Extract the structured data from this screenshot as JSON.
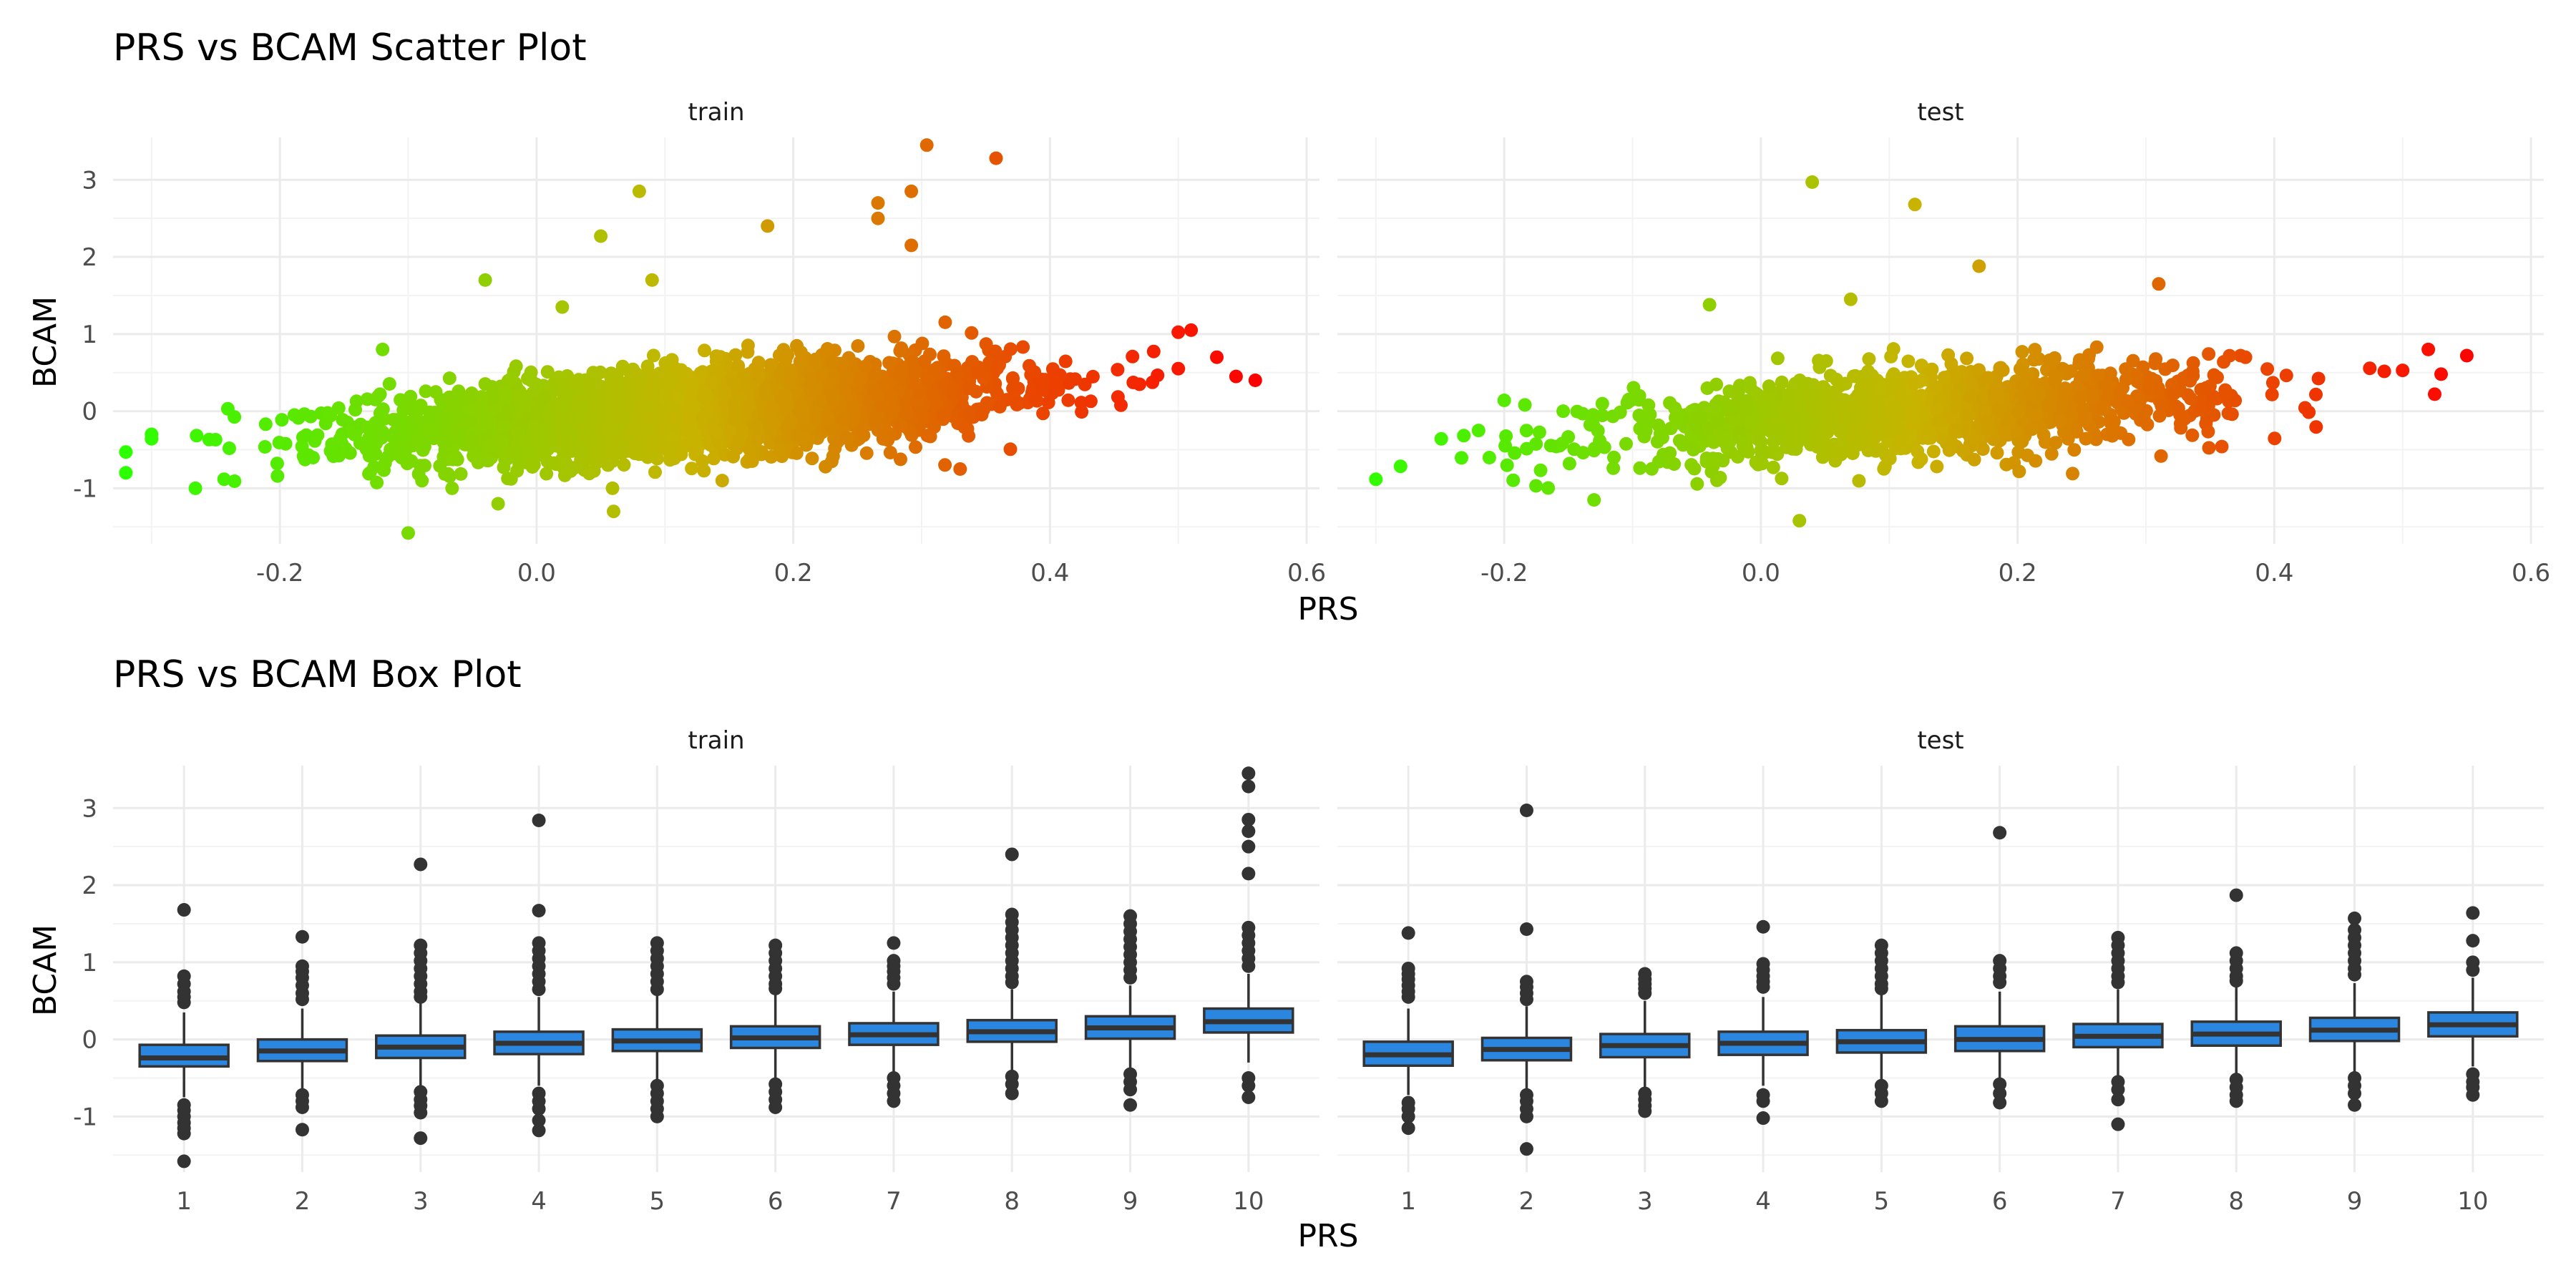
{
  "chart_data": [
    {
      "type": "scatter",
      "title": "PRS vs BCAM Scatter Plot",
      "xlabel": "PRS",
      "ylabel": "BCAM",
      "facets": [
        "train",
        "test"
      ],
      "xlim": [
        -0.33,
        0.61
      ],
      "ylim": [
        -1.72,
        3.55
      ],
      "x_ticks": [
        "-0.2",
        "0.0",
        "0.2",
        "0.4",
        "0.6"
      ],
      "x_tick_values": [
        -0.2,
        0.0,
        0.2,
        0.4,
        0.6
      ],
      "y_ticks": [
        "-1",
        "0",
        "1",
        "2",
        "3"
      ],
      "y_tick_values": [
        -1,
        0,
        1,
        2,
        3
      ],
      "color_scale": {
        "low": "#2bff00",
        "mid": "#c8b400",
        "high": "#ff0000",
        "domain": [
          -0.32,
          0.56
        ]
      },
      "grid": true,
      "notable_points": {
        "train": [
          [
            -0.32,
            -0.53
          ],
          [
            -0.32,
            -0.8
          ],
          [
            -0.3,
            -0.3
          ],
          [
            -0.1,
            -1.58
          ],
          [
            -0.12,
            0.8
          ],
          [
            -0.04,
            1.7
          ],
          [
            0.02,
            1.35
          ],
          [
            0.05,
            2.27
          ],
          [
            0.08,
            2.85
          ],
          [
            0.09,
            1.7
          ],
          [
            0.18,
            2.4
          ],
          [
            0.266,
            2.7
          ],
          [
            0.266,
            2.5
          ],
          [
            0.292,
            2.85
          ],
          [
            0.292,
            2.15
          ],
          [
            0.304,
            3.45
          ],
          [
            0.358,
            3.28
          ],
          [
            0.56,
            0.4
          ],
          [
            0.545,
            0.45
          ],
          [
            0.53,
            0.7
          ],
          [
            0.51,
            1.05
          ],
          [
            0.06,
            -1.3
          ],
          [
            -0.03,
            -1.2
          ],
          [
            0.33,
            -0.75
          ]
        ],
        "test": [
          [
            -0.22,
            -0.25
          ],
          [
            -0.2,
            0.14
          ],
          [
            -0.13,
            -1.15
          ],
          [
            0.03,
            -1.42
          ],
          [
            0.04,
            2.97
          ],
          [
            0.12,
            2.68
          ],
          [
            0.17,
            1.88
          ],
          [
            0.31,
            1.65
          ],
          [
            0.52,
            0.8
          ],
          [
            0.55,
            0.72
          ],
          [
            0.53,
            0.48
          ],
          [
            0.525,
            0.22
          ],
          [
            -0.04,
            1.38
          ],
          [
            0.07,
            1.45
          ]
        ]
      },
      "cloud": {
        "train": {
          "n": 3200,
          "x_mean": 0.12,
          "x_sd": 0.12,
          "slope": 1.15,
          "intercept": -0.14,
          "noise_sd": 0.27
        },
        "test": {
          "n": 1300,
          "x_mean": 0.12,
          "x_sd": 0.12,
          "slope": 1.15,
          "intercept": -0.14,
          "noise_sd": 0.27
        }
      }
    },
    {
      "type": "box",
      "title": "PRS vs BCAM Box Plot",
      "xlabel": "PRS",
      "ylabel": "BCAM",
      "facets": [
        "train",
        "test"
      ],
      "categories": [
        "1",
        "2",
        "3",
        "4",
        "5",
        "6",
        "7",
        "8",
        "9",
        "10"
      ],
      "ylim": [
        -1.72,
        3.55
      ],
      "y_ticks": [
        "-1",
        "0",
        "1",
        "2",
        "3"
      ],
      "y_tick_values": [
        -1,
        0,
        1,
        2,
        3
      ],
      "box_color": "#2b86e0",
      "grid": true,
      "series": [
        {
          "name": "train",
          "boxes": [
            {
              "q1": -0.35,
              "median": -0.24,
              "q3": -0.07,
              "lower": -0.75,
              "upper": 0.35,
              "outliers": [
                1.68,
                0.82,
                0.72,
                0.62,
                0.55,
                0.48,
                -0.85,
                -0.92,
                -1.0,
                -1.08,
                -1.15,
                -1.22,
                -1.58
              ]
            },
            {
              "q1": -0.28,
              "median": -0.15,
              "q3": 0.0,
              "lower": -0.68,
              "upper": 0.4,
              "outliers": [
                1.33,
                0.95,
                0.88,
                0.8,
                0.7,
                0.6,
                0.52,
                -0.72,
                -0.8,
                -0.88,
                -1.17
              ]
            },
            {
              "q1": -0.24,
              "median": -0.1,
              "q3": 0.05,
              "lower": -0.62,
              "upper": 0.48,
              "outliers": [
                2.27,
                1.22,
                1.12,
                1.02,
                0.92,
                0.82,
                0.72,
                0.62,
                0.55,
                -0.68,
                -0.78,
                -0.86,
                -0.95,
                -1.28
              ]
            },
            {
              "q1": -0.19,
              "median": -0.05,
              "q3": 0.1,
              "lower": -0.6,
              "upper": 0.55,
              "outliers": [
                2.84,
                1.67,
                1.25,
                1.15,
                1.05,
                0.95,
                0.85,
                0.75,
                0.65,
                -0.7,
                -0.8,
                -0.9,
                -1.05,
                -1.18
              ]
            },
            {
              "q1": -0.15,
              "median": -0.02,
              "q3": 0.13,
              "lower": -0.55,
              "upper": 0.58,
              "outliers": [
                1.25,
                1.15,
                1.05,
                0.95,
                0.85,
                0.75,
                0.65,
                -0.6,
                -0.7,
                -0.8,
                -0.9,
                -1.0
              ]
            },
            {
              "q1": -0.11,
              "median": 0.02,
              "q3": 0.17,
              "lower": -0.5,
              "upper": 0.6,
              "outliers": [
                1.22,
                1.12,
                1.02,
                0.92,
                0.82,
                0.72,
                0.66,
                -0.58,
                -0.68,
                -0.78,
                -0.88
              ]
            },
            {
              "q1": -0.07,
              "median": 0.06,
              "q3": 0.21,
              "lower": -0.45,
              "upper": 0.62,
              "outliers": [
                1.25,
                1.02,
                0.95,
                0.88,
                0.8,
                0.72,
                -0.5,
                -0.6,
                -0.7,
                -0.8
              ]
            },
            {
              "q1": -0.03,
              "median": 0.1,
              "q3": 0.25,
              "lower": -0.42,
              "upper": 0.65,
              "outliers": [
                2.4,
                1.62,
                1.52,
                1.42,
                1.32,
                1.22,
                1.12,
                1.02,
                0.92,
                0.82,
                0.74,
                -0.48,
                -0.58,
                -0.7
              ]
            },
            {
              "q1": 0.01,
              "median": 0.15,
              "q3": 0.3,
              "lower": -0.4,
              "upper": 0.7,
              "outliers": [
                1.6,
                1.5,
                1.4,
                1.3,
                1.2,
                1.1,
                1.0,
                0.9,
                0.8,
                -0.45,
                -0.55,
                -0.65,
                -0.85
              ]
            },
            {
              "q1": 0.09,
              "median": 0.23,
              "q3": 0.4,
              "lower": -0.3,
              "upper": 0.85,
              "outliers": [
                3.45,
                3.28,
                2.85,
                2.7,
                2.5,
                2.15,
                1.45,
                1.35,
                1.25,
                1.15,
                1.05,
                0.95,
                -0.5,
                -0.6,
                -0.75
              ]
            }
          ]
        },
        {
          "name": "test",
          "boxes": [
            {
              "q1": -0.34,
              "median": -0.2,
              "q3": -0.03,
              "lower": -0.72,
              "upper": 0.4,
              "outliers": [
                1.38,
                0.92,
                0.85,
                0.78,
                0.7,
                0.62,
                0.55,
                -0.82,
                -0.9,
                -1.0,
                -1.15
              ]
            },
            {
              "q1": -0.27,
              "median": -0.13,
              "q3": 0.02,
              "lower": -0.68,
              "upper": 0.43,
              "outliers": [
                2.97,
                1.43,
                0.75,
                0.68,
                0.6,
                0.52,
                -0.72,
                -0.8,
                -0.9,
                -1.0,
                -1.42
              ]
            },
            {
              "q1": -0.23,
              "median": -0.08,
              "q3": 0.07,
              "lower": -0.65,
              "upper": 0.5,
              "outliers": [
                0.85,
                0.78,
                0.72,
                0.66,
                0.6,
                -0.7,
                -0.78,
                -0.86,
                -0.93
              ]
            },
            {
              "q1": -0.2,
              "median": -0.05,
              "q3": 0.1,
              "lower": -0.6,
              "upper": 0.55,
              "outliers": [
                1.46,
                0.98,
                0.9,
                0.82,
                0.75,
                0.68,
                -0.72,
                -0.8,
                -1.02
              ]
            },
            {
              "q1": -0.17,
              "median": -0.03,
              "q3": 0.12,
              "lower": -0.55,
              "upper": 0.58,
              "outliers": [
                1.22,
                1.12,
                1.02,
                0.92,
                0.82,
                0.72,
                0.66,
                -0.6,
                -0.7,
                -0.8
              ]
            },
            {
              "q1": -0.15,
              "median": 0.0,
              "q3": 0.17,
              "lower": -0.52,
              "upper": 0.62,
              "outliers": [
                2.68,
                1.02,
                0.92,
                0.82,
                0.74,
                -0.58,
                -0.7,
                -0.82
              ]
            },
            {
              "q1": -0.1,
              "median": 0.04,
              "q3": 0.2,
              "lower": -0.48,
              "upper": 0.65,
              "outliers": [
                1.32,
                1.22,
                1.12,
                1.02,
                0.92,
                0.82,
                0.74,
                -0.55,
                -0.65,
                -0.78,
                -1.1
              ]
            },
            {
              "q1": -0.08,
              "median": 0.07,
              "q3": 0.23,
              "lower": -0.45,
              "upper": 0.68,
              "outliers": [
                1.87,
                1.12,
                1.02,
                0.92,
                0.82,
                0.76,
                -0.52,
                -0.62,
                -0.72,
                -0.8
              ]
            },
            {
              "q1": -0.02,
              "median": 0.12,
              "q3": 0.28,
              "lower": -0.42,
              "upper": 0.73,
              "outliers": [
                1.57,
                1.42,
                1.32,
                1.22,
                1.12,
                1.02,
                0.92,
                0.84,
                -0.5,
                -0.6,
                -0.7,
                -0.85
              ]
            },
            {
              "q1": 0.04,
              "median": 0.19,
              "q3": 0.35,
              "lower": -0.35,
              "upper": 0.8,
              "outliers": [
                1.64,
                1.28,
                1.0,
                0.9,
                -0.45,
                -0.55,
                -0.62,
                -0.72
              ]
            }
          ]
        }
      ]
    }
  ]
}
